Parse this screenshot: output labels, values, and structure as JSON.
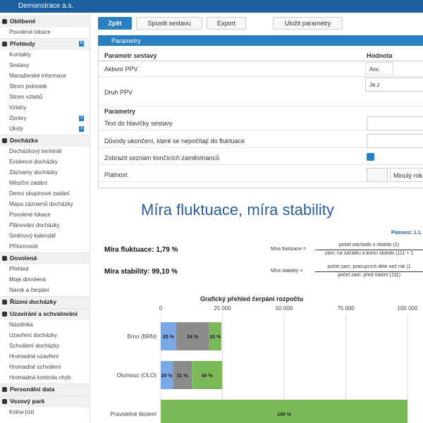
{
  "header": {
    "company": "Demonstrace a.s."
  },
  "sidebar": {
    "sections": [
      {
        "title": "Oblíbené",
        "items": [
          {
            "label": "Povolené lokace"
          }
        ]
      },
      {
        "title": "Přehledy",
        "badge": "6",
        "items": [
          {
            "label": "Kontakty"
          },
          {
            "label": "Sestavy"
          },
          {
            "label": "Manažerské informace"
          },
          {
            "label": "Strom jednotek"
          },
          {
            "label": "Strom vztahů"
          },
          {
            "label": "Vztahy"
          },
          {
            "label": "Zprávy",
            "badge": "3"
          },
          {
            "label": "Úkoly",
            "badge": "3"
          }
        ]
      },
      {
        "title": "Docházka",
        "items": [
          {
            "label": "Docházkový terminál"
          },
          {
            "label": "Evidence docházky"
          },
          {
            "label": "Záznamy docházky"
          },
          {
            "label": "Měsíční zadání"
          },
          {
            "label": "Denní skupinové zadání"
          },
          {
            "label": "Mapa záznamů docházky"
          },
          {
            "label": "Povolené lokace"
          },
          {
            "label": "Plánování docházky"
          },
          {
            "label": "Směnový kalendář"
          },
          {
            "label": "Přítomnosti"
          }
        ]
      },
      {
        "title": "Dovolená",
        "items": [
          {
            "label": "Přehled"
          },
          {
            "label": "Moje dovolená"
          },
          {
            "label": "Nárok a čerpání"
          }
        ]
      },
      {
        "title": "Řízení docházky",
        "items": []
      },
      {
        "title": "Uzavírání a schvalování",
        "items": [
          {
            "label": "Nástěnka"
          },
          {
            "label": "Uzavření docházky"
          },
          {
            "label": "Schválení docházky"
          },
          {
            "label": "Hromadné uzavření"
          },
          {
            "label": "Hromadné schválení"
          },
          {
            "label": "Hromadná kontrola chyb"
          }
        ]
      },
      {
        "title": "Personální data",
        "items": []
      },
      {
        "title": "Vozový park",
        "items": [
          {
            "label": "Kniha jízd"
          }
        ]
      }
    ]
  },
  "toolbar": {
    "back": "Zpět",
    "run": "Spustit sestavu",
    "export": "Export",
    "save": "Uložit parametry"
  },
  "panel": {
    "title": "Parametry",
    "columns": [
      "Parametr sestavy",
      "Hodnota"
    ],
    "rows": [
      {
        "label": "Aktivní PPV",
        "value": "Anc"
      },
      {
        "label": "Druh PPV",
        "value": "Je z"
      }
    ],
    "subheader": "Parametry",
    "params": [
      {
        "label": "Text do hlavičky sestavy"
      },
      {
        "label": "Důvody ukončení, které se nepočítají do fluktuace"
      },
      {
        "label": "Zobrazit seznam končících zaměstnanců"
      },
      {
        "label": "Platnost",
        "value": "Minulý rok"
      }
    ]
  },
  "report": {
    "title": "Míra fluktuace, míra stability",
    "validity": "Platnost: 1.1.",
    "fluctuation": {
      "result": "Míra fluktuace: 1,79 %",
      "formula": "Míra fluktuace =",
      "numerator": "počet odchodů v období (2)",
      "denominator": "zam. na začátku a konci období (111 + 1"
    },
    "stability": {
      "result": "Míra stability: 99,10 %",
      "formula": "Míra stability =",
      "numerator": "počet zam. pracujících déle než rok (1",
      "denominator": "počet zam. před rokem (111)"
    }
  },
  "chart_data": {
    "type": "bar",
    "title": "Grafický přehled čerpání rozpočtu",
    "categories": [
      "Brno (BRN)",
      "Olomouc (OLO)",
      "Pravidelné školení"
    ],
    "xlim": [
      0,
      100000
    ],
    "xticks": [
      0,
      {
        "value": 25000,
        "label": "25 000"
      },
      {
        "value": 50000,
        "label": "50 000"
      },
      {
        "value": 75000,
        "label": "75 000"
      },
      {
        "value": 100000,
        "label": "100 000"
      }
    ],
    "grid": true,
    "series": [
      {
        "color": "#7ba7e4",
        "values": [
          6200,
          4900,
          null
        ],
        "share_labels": [
          "25 %",
          "20 %",
          null
        ]
      },
      {
        "color": "#8c8c8c",
        "values": [
          13400,
          7700,
          null
        ],
        "share_labels": [
          "54 %",
          "31 %",
          null
        ]
      },
      {
        "color": "#7cb95a",
        "values": [
          5000,
          12300,
          100000
        ],
        "share_labels": [
          "20 %",
          "49 %",
          "100 %"
        ]
      }
    ]
  }
}
